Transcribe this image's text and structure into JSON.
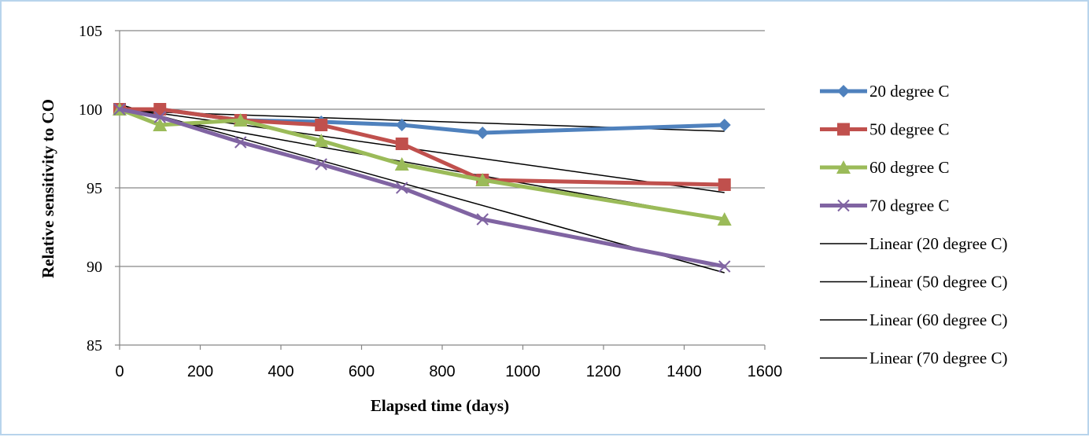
{
  "chart_data": {
    "type": "line",
    "xlabel": "Elapsed time (days)",
    "ylabel": "Relative sensitivity to CO",
    "xlim": [
      0,
      1600
    ],
    "ylim": [
      85,
      105
    ],
    "xticks": [
      "0",
      "200",
      "400",
      "600",
      "800",
      "1000",
      "1200",
      "1400",
      "1600"
    ],
    "yticks": [
      "85",
      "90",
      "95",
      "100",
      "105"
    ],
    "grid": "horizontal",
    "legend_position": "right",
    "series": [
      {
        "name": "20 degree C",
        "color": "#4f81bd",
        "marker": "diamond",
        "x": [
          0,
          100,
          300,
          500,
          700,
          900,
          1500
        ],
        "y": [
          100,
          100,
          99.3,
          99.2,
          99,
          98.5,
          99
        ]
      },
      {
        "name": "50 degree C",
        "color": "#c0504d",
        "marker": "square",
        "x": [
          0,
          100,
          300,
          500,
          700,
          900,
          1500
        ],
        "y": [
          100,
          100,
          99.3,
          99,
          97.8,
          95.5,
          95.2
        ]
      },
      {
        "name": "60 degree C",
        "color": "#9bbb59",
        "marker": "triangle",
        "x": [
          0,
          100,
          300,
          500,
          700,
          900,
          1500
        ],
        "y": [
          100,
          99,
          99.3,
          98,
          96.5,
          95.5,
          93
        ]
      },
      {
        "name": "70 degree C",
        "color": "#8064a2",
        "marker": "x",
        "x": [
          0,
          100,
          300,
          500,
          700,
          900,
          1500
        ],
        "y": [
          100,
          99.5,
          97.9,
          96.5,
          95,
          93,
          90
        ]
      }
    ],
    "trendlines": [
      {
        "name": "Linear (20 degree C)",
        "color": "#000000",
        "x": [
          0,
          1500
        ],
        "y": [
          99.9,
          98.6
        ]
      },
      {
        "name": "Linear (50 degree C)",
        "color": "#000000",
        "x": [
          0,
          1500
        ],
        "y": [
          100.1,
          94.7
        ]
      },
      {
        "name": "Linear (60 degree C)",
        "color": "#000000",
        "x": [
          0,
          1500
        ],
        "y": [
          99.9,
          93
        ]
      },
      {
        "name": "Linear (70 degree C)",
        "color": "#000000",
        "x": [
          0,
          1500
        ],
        "y": [
          100.3,
          89.6
        ]
      }
    ]
  }
}
